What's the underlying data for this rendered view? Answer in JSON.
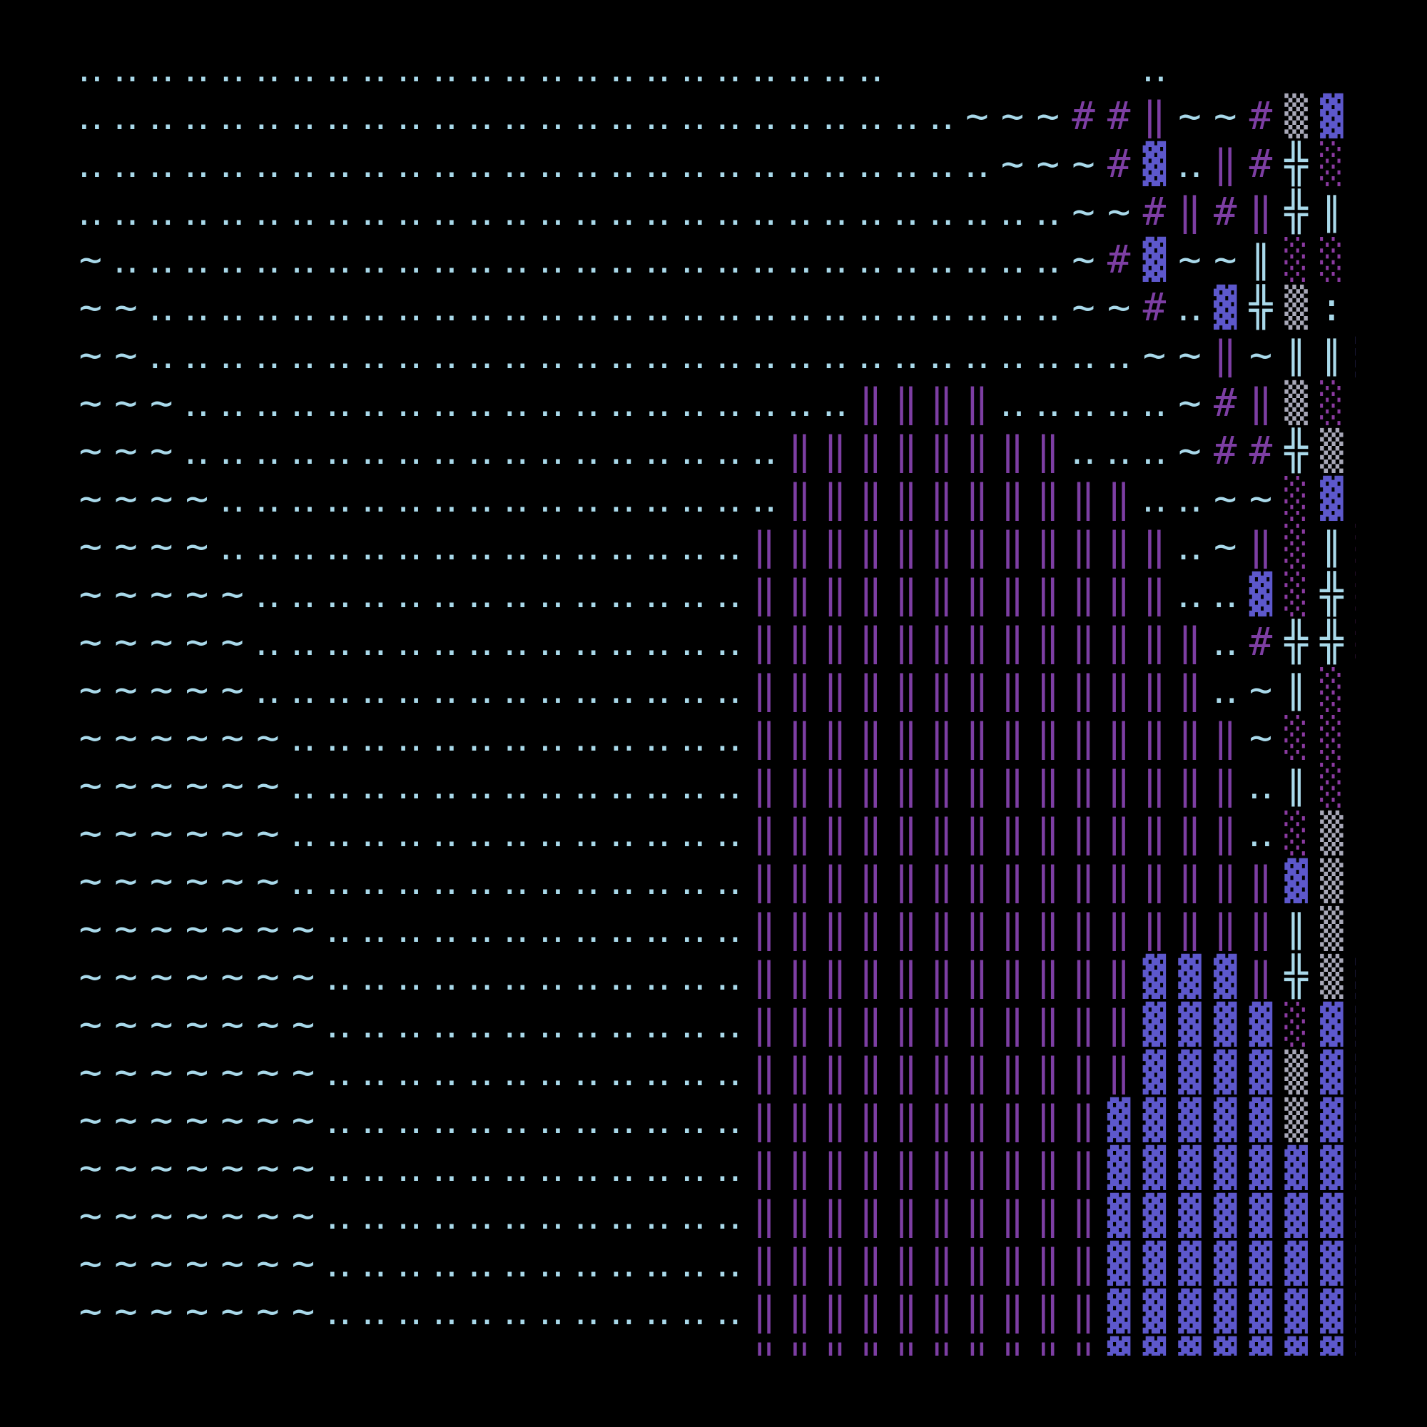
{
  "grid": {
    "colors": {
      "‥": "#a9d9ea",
      "~": "#a9d9ea",
      "╬": "#a9d9ea",
      "∥": "#a9d9ea",
      "|": "#a9d9ea",
      ":": "#a9d9ea",
      "#": "#7d3ea3",
      "‖": "#7d3ea3",
      "▓": "#5d58cc",
      "░": "#8a3aa0",
      "▒": "#a8a8b8"
    },
    "rows": [
      "‥‥‥‥‥‥‥‥‥‥‥‥‥‥‥‥‥‥‥‥‥‥‥       ‥      ",
      "‥‥‥‥‥‥‥‥‥‥‥‥‥‥‥‥‥‥‥‥‥‥‥‥‥~~~##‖~~#▒▓:",
      "‥‥‥‥‥‥‥‥‥‥‥‥‥‥‥‥‥‥‥‥‥‥‥‥‥‥~~~#▓‥‖#╬░|",
      "‥‥‥‥‥‥‥‥‥‥‥‥‥‥‥‥‥‥‥‥‥‥‥‥‥‥‥‥~~#‖#‖╬∥:",
      "~‥‥‥‥‥‥‥‥‥‥‥‥‥‥‥‥‥‥‥‥‥‥‥‥‥‥‥~#▓~~∥░░",
      "~~‥‥‥‥‥‥‥‥‥‥‥‥‥‥‥‥‥‥‥‥‥‥‥‥‥‥~~#‥▓╬▒:",
      "~~‥‥‥‥‥‥‥‥‥‥‥‥‥‥‥‥‥‥‥‥‥‥‥‥‥‥‥‥~~‖~∥∥▓",
      "~~~‥‥‥‥‥‥‥‥‥‥‥‥‥‥‥‥‥‥‥‖‖‖‖‥‥‥‥‥~#‖▒░|",
      "~~~‥‥‥‥‥‥‥‥‥‥‥‥‥‥‥‥‥‖‖‖‖‖‖‖‖‥‥‥~##╬▒:",
      "~~~~‥‥‥‥‥‥‥‥‥‥‥‥‥‥‥‥‖‖‖‖‖‖‖‖‖‖‥‥~~░▓:",
      "~~~~‥‥‥‥‥‥‥‥‥‥‥‥‥‥‥‖‖‖‖‖‖‖‖‖‖‖‖‥~‖░∥░",
      "~~~~~‥‥‥‥‥‥‥‥‥‥‥‥‥‥‖‖‖‖‖‖‖‖‖‖‖‖‥‥▓░╬░",
      "~~~~~‥‥‥‥‥‥‥‥‥‥‥‥‥‥‖‖‖‖‖‖‖‖‖‖‖‖‖‥#╬╬░",
      "~~~~~‥‥‥‥‥‥‥‥‥‥‥‥‥‥‖‖‖‖‖‖‖‖‖‖‖‖‖‥~∥░:",
      "~~~~~~‥‥‥‥‥‥‥‥‥‥‥‥‥‖‖‖‖‖‖‖‖‖‖‖‖‖‖~░░:",
      "~~~~~~‥‥‥‥‥‥‥‥‥‥‥‥‥‖‖‖‖‖‖‖‖‖‖‖‖‖‖‥∥░:",
      "~~~~~~‥‥‥‥‥‥‥‥‥‥‥‥‥‖‖‖‖‖‖‖‖‖‖‖‖‖‖‥░▒:",
      "~~~~~~‥‥‥‥‥‥‥‥‥‥‥‥‥‖‖‖‖‖‖‖‖‖‖‖‖‖‖‖▓▒:",
      "~~~~~~~‥‥‥‥‥‥‥‥‥‥‥‥‖‖‖‖‖‖‖‖‖‖‖‖‖‖‖∥▒:",
      "~~~~~~~‥‥‥‥‥‥‥‥‥‥‥‥‖‖‖‖‖‖‖‖‖‖‖▓▓▓‖╬▒▓",
      "~~~~~~~‥‥‥‥‥‥‥‥‥‥‥‥‖‖‖‖‖‖‖‖‖‖‖▓▓▓▓░▓▓",
      "~~~~~~~‥‥‥‥‥‥‥‥‥‥‥‥‖‖‖‖‖‖‖‖‖‖‖▓▓▓▓▒▓▓",
      "~~~~~~~‥‥‥‥‥‥‥‥‥‥‥‥‖‖‖‖‖‖‖‖‖‖▓▓▓▓▓▒▓▓",
      "~~~~~~~‥‥‥‥‥‥‥‥‥‥‥‥‖‖‖‖‖‖‖‖‖‖▓▓▓▓▓▓▓▓",
      "~~~~~~~‥‥‥‥‥‥‥‥‥‥‥‥‖‖‖‖‖‖‖‖‖‖▓▓▓▓▓▓▓▓",
      "~~~~~~~‥‥‥‥‥‥‥‥‥‥‥‥‖‖‖‖‖‖‖‖‖‖▓▓▓▓▓▓▓▓",
      "~~~~~~~‥‥‥‥‥‥‥‥‥‥‥‥‖‖‖‖‖‖‖‖‖‖▓▓▓▓▓▓▓▓",
      "~~~~~~~‥‥‥‥‥‥‥‥‥‥‥‥‖‖‖‖‖‖‖‖‖‖▓▓▓▓▓▓▓▓"
    ]
  }
}
